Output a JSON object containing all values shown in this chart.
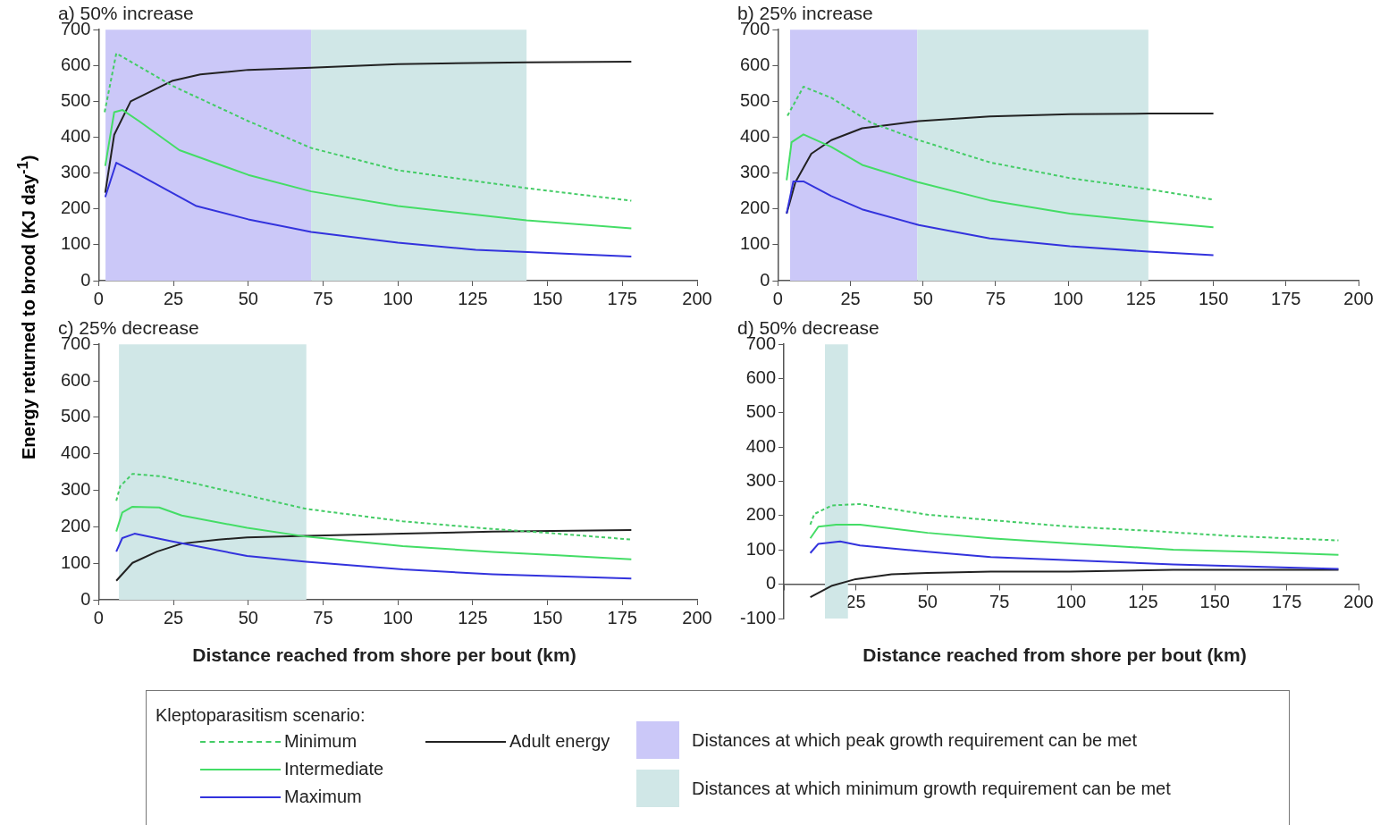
{
  "chart_data": [
    {
      "type": "line",
      "title": "a) 50% increase",
      "ylabel": "Energy returned to brood (KJ day$^{-1}$)",
      "legend_title": "Kleptoparasitism scenario:",
      "legend": "bottom",
      "grid": false,
      "xlim": [
        0,
        200
      ],
      "xticks": [
        0,
        25,
        50,
        75,
        100,
        125,
        150,
        175,
        200
      ],
      "ylim": [
        0,
        700
      ],
      "yticks": [
        0,
        100,
        200,
        300,
        400,
        500,
        600,
        700
      ],
      "bands": [
        {
          "axis": "x",
          "from": 2.3,
          "to": 71,
          "label": "Distances at which peak growth requirement can be met",
          "color": "#cbc8f8"
        },
        {
          "axis": "x",
          "from": 71,
          "to": 143,
          "label": "Distances at which minimum growth requirement can be met",
          "color": "#d0e7e7"
        }
      ],
      "series": [
        {
          "name": "Minimum",
          "color": "#44cc66",
          "line_style": "dashed",
          "x": [
            2,
            5.9,
            24.5,
            50,
            71,
            100,
            143,
            178
          ],
          "values": [
            470,
            634,
            544,
            445,
            370,
            308,
            258,
            223
          ]
        },
        {
          "name": "Intermediate",
          "color": "#44dd66",
          "x": [
            2.2,
            5.2,
            8,
            13.5,
            27,
            50,
            71,
            100,
            143,
            178
          ],
          "values": [
            320,
            470,
            476,
            445,
            364,
            295,
            249,
            208,
            168,
            146
          ]
        },
        {
          "name": "Maximum",
          "color": "#3333dd",
          "x": [
            2.2,
            5.9,
            10.7,
            32.7,
            50,
            71,
            100,
            126,
            178
          ],
          "values": [
            233,
            329,
            308,
            208,
            171,
            136,
            106,
            86,
            67
          ]
        },
        {
          "name": "Adult energy",
          "color": "#222222",
          "x": [
            2.2,
            5.2,
            10.7,
            24.5,
            34,
            50,
            71,
            100,
            143,
            178
          ],
          "values": [
            245,
            407,
            500,
            557,
            575,
            588,
            594,
            604,
            609,
            611
          ]
        }
      ]
    },
    {
      "type": "line",
      "title": "b) 25% increase",
      "grid": false,
      "xlim": [
        0,
        200
      ],
      "xticks": [
        0,
        25,
        50,
        75,
        100,
        125,
        150,
        175,
        200
      ],
      "ylim": [
        0,
        700
      ],
      "yticks": [
        0,
        100,
        200,
        300,
        400,
        500,
        600,
        700
      ],
      "bands": [
        {
          "axis": "x",
          "from": 4.2,
          "to": 48,
          "color": "#cbc8f8"
        },
        {
          "axis": "x",
          "from": 48,
          "to": 127.6,
          "color": "#d0e7e7"
        }
      ],
      "series": [
        {
          "color": "#44cc66",
          "line_style": "dashed",
          "x": [
            3.3,
            8.8,
            18.4,
            32,
            48.5,
            73,
            100.6,
            127.6,
            150
          ],
          "values": [
            460,
            541,
            510,
            441,
            392,
            330,
            286,
            255,
            226
          ]
        },
        {
          "color": "#44dd66",
          "x": [
            3,
            4.7,
            8.8,
            18.4,
            29,
            48.5,
            73,
            100.6,
            127.6,
            150
          ],
          "values": [
            280,
            386,
            408,
            373,
            323,
            274,
            224,
            187,
            165,
            149
          ]
        },
        {
          "color": "#3333dd",
          "x": [
            3,
            5.3,
            8.8,
            18.4,
            29,
            48.5,
            73,
            100.6,
            127.6,
            150
          ],
          "values": [
            187,
            277,
            277,
            236,
            199,
            155,
            118,
            96,
            81,
            71
          ]
        },
        {
          "color": "#222222",
          "x": [
            3,
            6,
            11.5,
            18.4,
            29,
            48.5,
            73,
            100.6,
            127.6,
            150
          ],
          "values": [
            187,
            274,
            354,
            392,
            425,
            445,
            458,
            464,
            466,
            466
          ]
        }
      ]
    },
    {
      "type": "line",
      "title": "c) 25% decrease",
      "xlabel": "Distance reached from shore per bout (km)",
      "grid": false,
      "xlim": [
        0,
        200
      ],
      "xticks": [
        0,
        25,
        50,
        75,
        100,
        125,
        150,
        175,
        200
      ],
      "ylim": [
        0,
        700
      ],
      "yticks": [
        0,
        100,
        200,
        300,
        400,
        500,
        600,
        700
      ],
      "bands": [
        {
          "axis": "x",
          "from": 6.8,
          "to": 69.4,
          "color": "#d0e7e7"
        }
      ],
      "series": [
        {
          "color": "#44cc66",
          "line_style": "dashed",
          "x": [
            5.9,
            7.2,
            11.3,
            20.9,
            33,
            49.6,
            69.4,
            101.6,
            131.6,
            153.5,
            178
          ],
          "values": [
            271,
            311,
            345,
            338,
            317,
            286,
            249,
            215,
            194,
            181,
            165
          ]
        },
        {
          "color": "#44dd66",
          "x": [
            5.9,
            7.9,
            11.3,
            20.2,
            27.8,
            49.6,
            69.4,
            101.6,
            131.6,
            153.5,
            178
          ],
          "values": [
            187,
            239,
            255,
            253,
            231,
            197,
            173,
            147,
            131,
            122,
            111
          ]
        },
        {
          "color": "#3333dd",
          "x": [
            5.9,
            7.9,
            12,
            25,
            49.6,
            69.4,
            101.6,
            131.6,
            153.5,
            178
          ],
          "values": [
            132,
            169,
            181,
            159,
            120,
            104,
            83,
            70,
            64,
            58
          ]
        },
        {
          "color": "#222222",
          "x": [
            5.9,
            11.3,
            19.5,
            27.8,
            40,
            49.6,
            69.4,
            101.6,
            131.6,
            178
          ],
          "values": [
            52,
            101,
            132,
            154,
            165,
            171,
            175,
            181,
            187,
            191
          ]
        }
      ]
    },
    {
      "type": "line",
      "title": "d) 50% decrease",
      "xlabel": "Distance reached from shore per bout (km)",
      "grid": false,
      "xlim": [
        0,
        200
      ],
      "xticks": [
        {
          "value": 0,
          "label": null
        },
        25,
        50,
        75,
        100,
        125,
        150,
        175,
        200
      ],
      "ylim": [
        -100,
        700
      ],
      "yticks": [
        -100,
        0,
        100,
        200,
        300,
        400,
        500,
        600,
        700
      ],
      "bands": [
        {
          "axis": "x",
          "from": 14.3,
          "to": 22.3,
          "color": "#d0e7e7"
        }
      ],
      "series": [
        {
          "color": "#44cc66",
          "line_style": "dashed",
          "x": [
            9.2,
            10.6,
            16.8,
            26.5,
            50,
            72,
            99.6,
            127,
            155,
            193
          ],
          "values": [
            174,
            205,
            230,
            234,
            203,
            187,
            168,
            156,
            141,
            128
          ]
        },
        {
          "color": "#44dd66",
          "x": [
            9.2,
            12,
            18.2,
            26.5,
            50,
            72,
            99.6,
            135.5,
            161.7,
            193
          ],
          "values": [
            134,
            168,
            174,
            174,
            150,
            134,
            119,
            101,
            95,
            86
          ]
        },
        {
          "color": "#3333dd",
          "x": [
            9.2,
            12,
            19.6,
            26.5,
            50,
            72,
            99.6,
            135.5,
            161.7,
            193
          ],
          "values": [
            91,
            118,
            125,
            113,
            95,
            79,
            70,
            58,
            52,
            45
          ]
        },
        {
          "color": "#222222",
          "x": [
            9.2,
            16.8,
            25,
            37.5,
            50,
            72,
            99.6,
            135.5,
            193
          ],
          "values": [
            -38,
            -4,
            15,
            29,
            33,
            37,
            37,
            42,
            42
          ]
        }
      ]
    }
  ]
}
